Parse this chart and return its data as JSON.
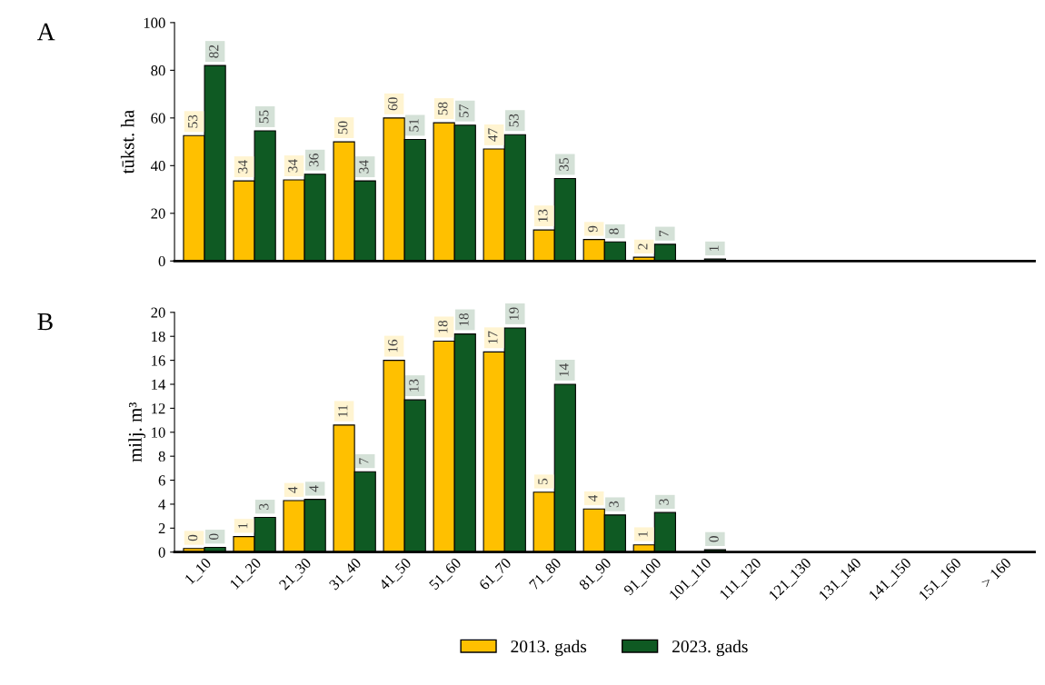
{
  "chart_data": [
    {
      "type": "bar",
      "categories": [
        null,
        null,
        null,
        null,
        null,
        null,
        null,
        null,
        null,
        null,
        null,
        null,
        null,
        null,
        null,
        null,
        null
      ],
      "ylabel": "tūkst. ha",
      "annotations": [
        "A"
      ],
      "ylim": [
        0,
        100
      ],
      "yticks": [
        0,
        20,
        40,
        60,
        80,
        100
      ],
      "tick_labels": "y",
      "grid": false,
      "legend": false,
      "series": [
        {
          "color": "#ffc000",
          "values": [
            52.6,
            33.6,
            34,
            50,
            60,
            58,
            47,
            13,
            9,
            1.6,
            null,
            null,
            null,
            null,
            null,
            null,
            null
          ],
          "value_labels": [
            "53",
            "34",
            "34",
            "50",
            "60",
            "58",
            "47",
            "13",
            "9",
            "2",
            null,
            null,
            null,
            null,
            null,
            null,
            null
          ]
        },
        {
          "color": "#0f5a23",
          "values": [
            82,
            54.6,
            36.4,
            33.6,
            51,
            57,
            53,
            34.6,
            8,
            7,
            0.8,
            null,
            null,
            null,
            null,
            null,
            null
          ],
          "value_labels": [
            "82",
            "55",
            "36",
            "34",
            "51",
            "57",
            "53",
            "35",
            "8",
            "7",
            "1",
            null,
            null,
            null,
            null,
            null,
            null
          ]
        }
      ]
    },
    {
      "type": "bar",
      "categories": [
        "1_10",
        "11_20",
        "21_30",
        "31_40",
        "41_50",
        "51_60",
        "61_70",
        "71_80",
        "81_90",
        "91_100",
        "101_110",
        "111_120",
        "121_130",
        "131_140",
        "141_150",
        "151_160",
        "> 160"
      ],
      "ylabel": "milj. m³",
      "annotations": [
        "B"
      ],
      "ylim": [
        0,
        20
      ],
      "yticks": [
        0,
        2,
        4,
        6,
        8,
        10,
        12,
        14,
        16,
        18,
        20
      ],
      "grid": false,
      "legend": "bottom",
      "series": [
        {
          "name": "2013. gads",
          "color": "#ffc000",
          "values": [
            0.3,
            1.3,
            4.3,
            10.6,
            16,
            17.6,
            16.7,
            5,
            3.6,
            0.6,
            null,
            null,
            null,
            null,
            null,
            null,
            null
          ],
          "value_labels": [
            "0",
            "1",
            "4",
            "11",
            "16",
            "18",
            "17",
            "5",
            "4",
            "1",
            null,
            null,
            null,
            null,
            null,
            null,
            null
          ]
        },
        {
          "name": "2023. gads",
          "color": "#0f5a23",
          "values": [
            0.4,
            2.9,
            4.4,
            6.7,
            12.7,
            18.2,
            18.7,
            14,
            3.1,
            3.3,
            0.2,
            null,
            null,
            null,
            null,
            null,
            null
          ],
          "value_labels": [
            "0",
            "3",
            "4",
            "7",
            "13",
            "18",
            "19",
            "14",
            "3",
            "3",
            "0",
            null,
            null,
            null,
            null,
            null,
            null
          ]
        }
      ]
    }
  ]
}
